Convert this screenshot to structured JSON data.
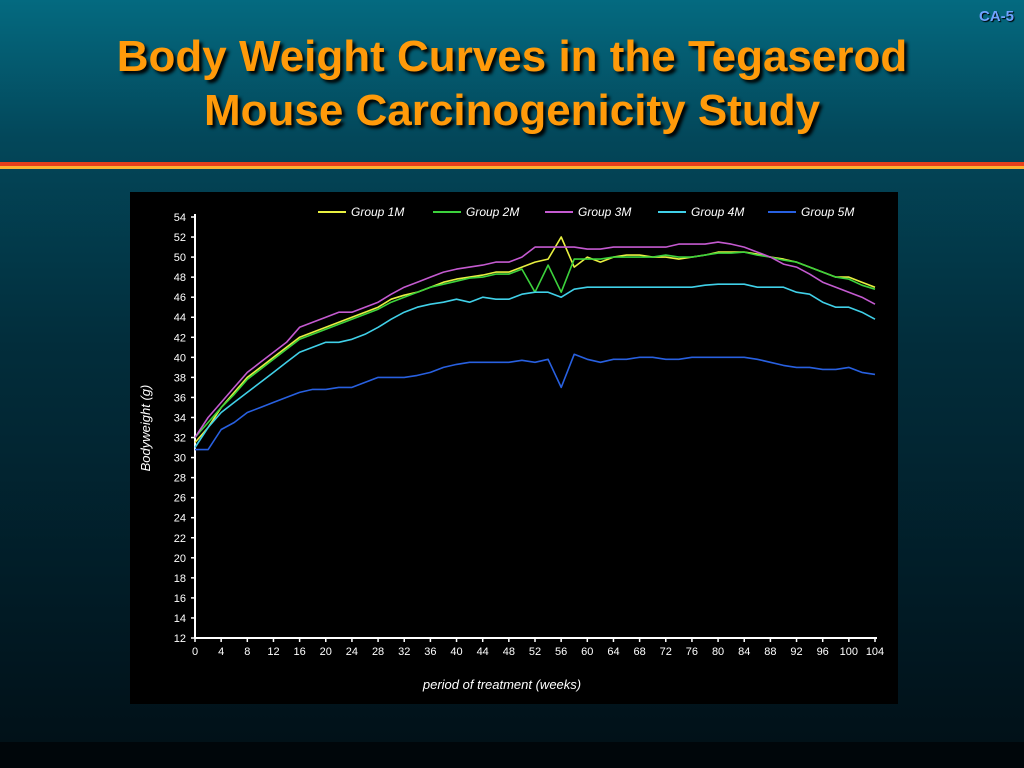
{
  "slide": {
    "id": "CA-5",
    "title_line1": "Body Weight Curves in the Tegaserod",
    "title_line2": "Mouse Carcinogenicity Study"
  },
  "chart_data": {
    "type": "line",
    "xlabel": "period of treatment (weeks)",
    "ylabel": "Bodyweight (g)",
    "ylim": [
      12,
      54
    ],
    "xlim": [
      0,
      104
    ],
    "xticks": [
      0,
      4,
      8,
      12,
      16,
      20,
      24,
      28,
      32,
      36,
      40,
      44,
      48,
      52,
      56,
      60,
      64,
      68,
      72,
      76,
      80,
      84,
      88,
      92,
      96,
      100,
      104
    ],
    "yticks": [
      12,
      14,
      16,
      18,
      20,
      22,
      24,
      26,
      28,
      30,
      32,
      34,
      36,
      38,
      40,
      42,
      44,
      46,
      48,
      50,
      52,
      54
    ],
    "grid": false,
    "legend_position": "top",
    "x": [
      0,
      2,
      4,
      6,
      8,
      10,
      12,
      14,
      16,
      18,
      20,
      22,
      24,
      26,
      28,
      30,
      32,
      34,
      36,
      38,
      40,
      42,
      44,
      46,
      48,
      50,
      52,
      54,
      56,
      58,
      60,
      62,
      64,
      66,
      68,
      70,
      72,
      74,
      76,
      78,
      80,
      82,
      84,
      86,
      88,
      90,
      92,
      94,
      96,
      98,
      100,
      102,
      104
    ],
    "series": [
      {
        "name": "Group 1M",
        "color": "#e8f040",
        "values": [
          31.5,
          33,
          35,
          36.5,
          38,
          39,
          40,
          41,
          42,
          42.5,
          43,
          43.5,
          44,
          44.5,
          45,
          45.8,
          46.2,
          46.5,
          47,
          47.5,
          47.8,
          48,
          48.2,
          48.5,
          48.5,
          49,
          49.5,
          49.8,
          52,
          49,
          50,
          49.5,
          50,
          50.2,
          50.2,
          50,
          50,
          49.8,
          50,
          50.2,
          50.5,
          50.5,
          50.5,
          50.3,
          50,
          49.8,
          49.5,
          49,
          48.5,
          48,
          48,
          47.5,
          47
        ]
      },
      {
        "name": "Group 2M",
        "color": "#3cd23c",
        "values": [
          32,
          33.5,
          35,
          36.3,
          37.8,
          38.8,
          39.8,
          40.8,
          41.8,
          42.3,
          42.8,
          43.3,
          43.8,
          44.3,
          44.8,
          45.5,
          46,
          46.5,
          47,
          47.3,
          47.6,
          47.9,
          48,
          48.3,
          48.3,
          48.8,
          46.5,
          49.2,
          46.5,
          49.8,
          49.8,
          49.8,
          50,
          50,
          50,
          50,
          50.2,
          50,
          50,
          50.2,
          50.4,
          50.4,
          50.5,
          50.2,
          50,
          49.7,
          49.5,
          49,
          48.5,
          48,
          47.8,
          47.2,
          46.8
        ]
      },
      {
        "name": "Group 3M",
        "color": "#c45ad0",
        "values": [
          32,
          34,
          35.5,
          37,
          38.5,
          39.5,
          40.5,
          41.5,
          43,
          43.5,
          44,
          44.5,
          44.5,
          45,
          45.5,
          46.3,
          47,
          47.5,
          48,
          48.5,
          48.8,
          49,
          49.2,
          49.5,
          49.5,
          50,
          51,
          51,
          51,
          51,
          50.8,
          50.8,
          51,
          51,
          51,
          51,
          51,
          51.3,
          51.3,
          51.3,
          51.5,
          51.3,
          51,
          50.5,
          50,
          49.3,
          49,
          48.3,
          47.5,
          47,
          46.5,
          46,
          45.3
        ]
      },
      {
        "name": "Group 4M",
        "color": "#40d0e8",
        "values": [
          31,
          33,
          34.5,
          35.5,
          36.5,
          37.5,
          38.5,
          39.5,
          40.5,
          41,
          41.5,
          41.5,
          41.8,
          42.3,
          43,
          43.8,
          44.5,
          45,
          45.3,
          45.5,
          45.8,
          45.5,
          46,
          45.8,
          45.8,
          46.3,
          46.5,
          46.5,
          46,
          46.8,
          47,
          47,
          47,
          47,
          47,
          47,
          47,
          47,
          47,
          47.2,
          47.3,
          47.3,
          47.3,
          47,
          47,
          47,
          46.5,
          46.3,
          45.5,
          45,
          45,
          44.5,
          43.8
        ]
      },
      {
        "name": "Group 5M",
        "color": "#2860e0",
        "values": [
          30.8,
          30.8,
          32.8,
          33.5,
          34.5,
          35,
          35.5,
          36,
          36.5,
          36.8,
          36.8,
          37,
          37,
          37.5,
          38,
          38,
          38,
          38.2,
          38.5,
          39,
          39.3,
          39.5,
          39.5,
          39.5,
          39.5,
          39.7,
          39.5,
          39.8,
          37,
          40.3,
          39.8,
          39.5,
          39.8,
          39.8,
          40,
          40,
          39.8,
          39.8,
          40,
          40,
          40,
          40,
          40,
          39.8,
          39.5,
          39.2,
          39,
          39,
          38.8,
          38.8,
          39,
          38.5,
          38.3
        ]
      }
    ]
  }
}
